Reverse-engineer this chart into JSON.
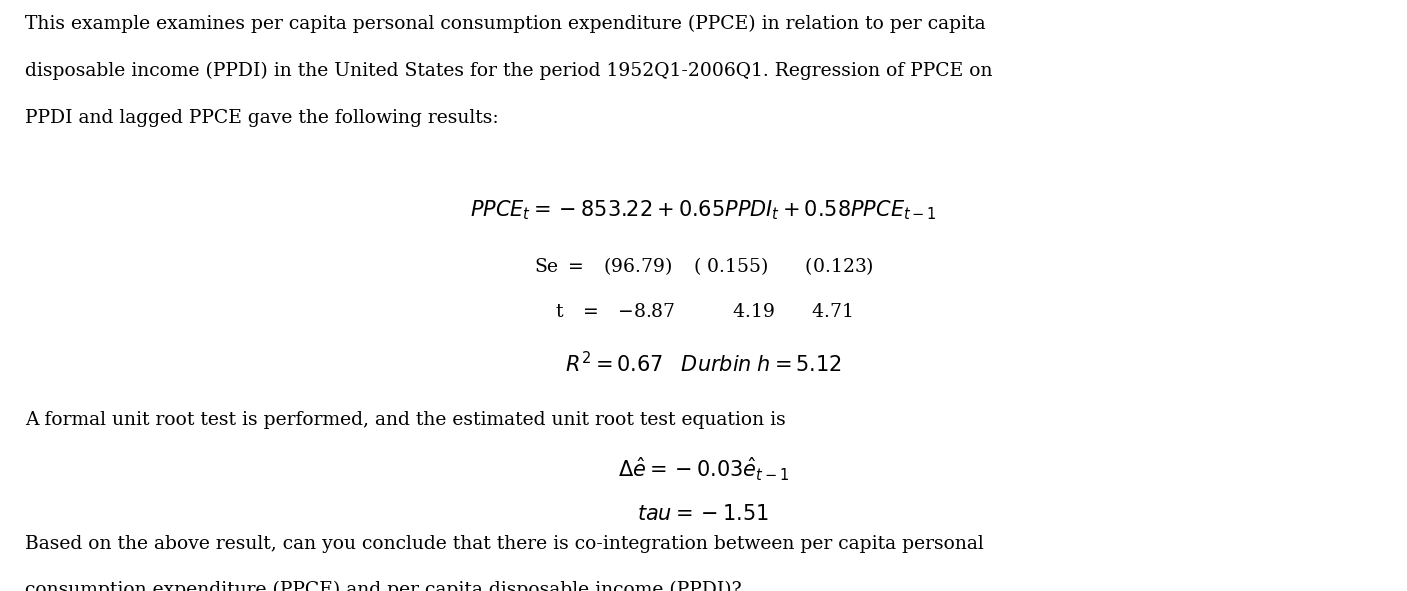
{
  "background_color": "#ffffff",
  "text_color": "#000000",
  "fig_width": 14.07,
  "fig_height": 5.91,
  "paragraph1_line1": "This example examines per capita personal consumption expenditure (PPCE) in relation to per capita",
  "paragraph1_line2": "disposable income (PPDI) in the United States for the period 1952Q1-2006Q1. Regression of PPCE on",
  "paragraph1_line3": "PPDI and lagged PPCE gave the following results:",
  "paragraph2": "A formal unit root test is performed, and the estimated unit root test equation is",
  "paragraph3_line1": "Based on the above result, can you conclude that there is co-integration between per capita personal",
  "paragraph3_line2": "consumption expenditure (PPCE) and per capita disposable income (PPDI)?",
  "body_fontsize": 13.5,
  "eq_fontsize": 15.0,
  "small_eq_fontsize": 13.5
}
